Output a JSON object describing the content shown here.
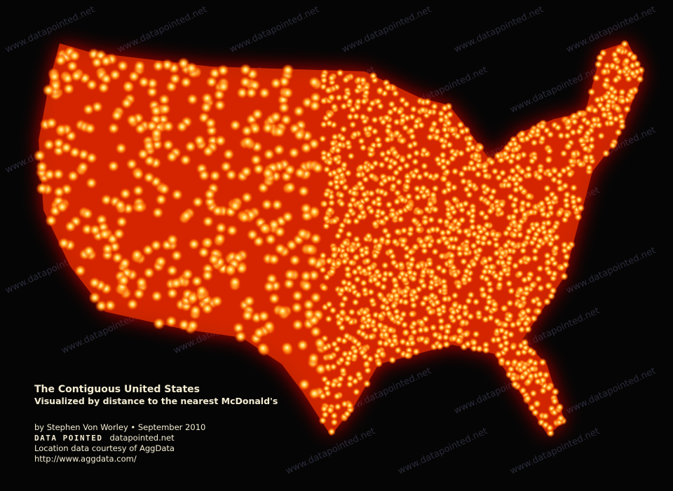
{
  "watermark": "www.datapointed.net",
  "caption": {
    "title": "The Contiguous United States",
    "subtitle": "Visualized by distance to the nearest McDonald's",
    "byline": "by Stephen Von Worley • September 2010",
    "brand": "DATA POINTED",
    "brand_url": "datapointed.net",
    "credit": "Location data courtesy of AggData",
    "credit_url": "http://www.aggdata.com/"
  },
  "colors": {
    "background": "#050505",
    "far": "#b00000",
    "mid": "#ff6a00",
    "near": "#fff6c8",
    "text": "#f3ecd2"
  }
}
